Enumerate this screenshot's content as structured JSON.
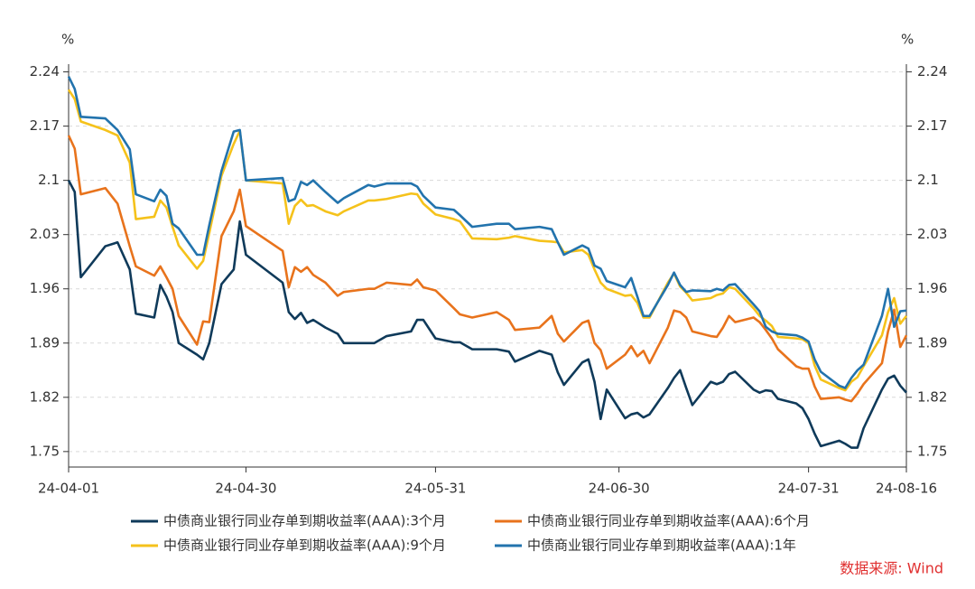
{
  "chart_data": {
    "type": "line",
    "y_label": "%",
    "y2_label": "%",
    "source": "数据来源: Wind",
    "x": [
      "24-04-01",
      "24-04-02",
      "24-04-03",
      "24-04-07",
      "24-04-09",
      "24-04-11",
      "24-04-12",
      "24-04-15",
      "24-04-16",
      "24-04-17",
      "24-04-18",
      "24-04-19",
      "24-04-22",
      "24-04-23",
      "24-04-24",
      "24-04-26",
      "24-04-28",
      "24-04-29",
      "24-04-30",
      "24-05-06",
      "24-05-07",
      "24-05-08",
      "24-05-09",
      "24-05-10",
      "24-05-11",
      "24-05-13",
      "24-05-15",
      "24-05-16",
      "24-05-20",
      "24-05-21",
      "24-05-23",
      "24-05-27",
      "24-05-28",
      "24-05-29",
      "24-05-31",
      "24-06-03",
      "24-06-04",
      "24-06-06",
      "24-06-10",
      "24-06-12",
      "24-06-13",
      "24-06-17",
      "24-06-19",
      "24-06-20",
      "24-06-21",
      "24-06-24",
      "24-06-25",
      "24-06-26",
      "24-06-27",
      "24-06-28",
      "24-07-01",
      "24-07-02",
      "24-07-03",
      "24-07-04",
      "24-07-05",
      "24-07-08",
      "24-07-09",
      "24-07-10",
      "24-07-11",
      "24-07-12",
      "24-07-15",
      "24-07-16",
      "24-07-17",
      "24-07-18",
      "24-07-19",
      "24-07-22",
      "24-07-23",
      "24-07-24",
      "24-07-25",
      "24-07-26",
      "24-07-29",
      "24-07-30",
      "24-07-31",
      "24-08-01",
      "24-08-02",
      "24-08-05",
      "24-08-06",
      "24-08-07",
      "24-08-08",
      "24-08-09",
      "24-08-12",
      "24-08-13",
      "24-08-14",
      "24-08-15",
      "24-08-16"
    ],
    "series": [
      {
        "name": "中债商业银行同业存单到期收益率(AAA):3个月",
        "color": "#0f3a5a",
        "values": [
          2.1,
          2.085,
          1.975,
          2.015,
          2.02,
          1.985,
          1.928,
          1.923,
          1.965,
          1.95,
          1.93,
          1.89,
          1.875,
          1.869,
          1.89,
          1.966,
          1.985,
          2.047,
          2.004,
          1.968,
          1.93,
          1.921,
          1.929,
          1.916,
          1.92,
          1.91,
          1.902,
          1.89,
          1.89,
          1.89,
          1.899,
          1.905,
          1.92,
          1.92,
          1.896,
          1.891,
          1.891,
          1.882,
          1.882,
          1.879,
          1.866,
          1.88,
          1.875,
          1.852,
          1.836,
          1.865,
          1.869,
          1.84,
          1.792,
          1.83,
          1.793,
          1.798,
          1.8,
          1.794,
          1.798,
          1.832,
          1.845,
          1.855,
          1.832,
          1.81,
          1.84,
          1.837,
          1.84,
          1.85,
          1.853,
          1.83,
          1.826,
          1.829,
          1.828,
          1.818,
          1.812,
          1.806,
          1.792,
          1.773,
          1.757,
          1.764,
          1.76,
          1.755,
          1.755,
          1.78,
          1.83,
          1.844,
          1.848,
          1.835,
          1.826
        ]
      },
      {
        "name": "中债商业银行同业存单到期收益率(AAA):6个月",
        "color": "#e8731c",
        "values": [
          2.158,
          2.141,
          2.082,
          2.09,
          2.07,
          2.015,
          1.989,
          1.977,
          1.989,
          1.975,
          1.96,
          1.925,
          1.888,
          1.918,
          1.917,
          2.028,
          2.06,
          2.088,
          2.041,
          2.009,
          1.962,
          1.988,
          1.982,
          1.988,
          1.978,
          1.968,
          1.951,
          1.956,
          1.96,
          1.96,
          1.968,
          1.965,
          1.972,
          1.962,
          1.958,
          1.935,
          1.927,
          1.923,
          1.93,
          1.92,
          1.907,
          1.91,
          1.925,
          1.902,
          1.892,
          1.916,
          1.919,
          1.89,
          1.881,
          1.857,
          1.875,
          1.886,
          1.873,
          1.88,
          1.864,
          1.91,
          1.932,
          1.93,
          1.923,
          1.905,
          1.899,
          1.898,
          1.91,
          1.925,
          1.917,
          1.923,
          1.917,
          1.907,
          1.896,
          1.882,
          1.86,
          1.857,
          1.857,
          1.834,
          1.818,
          1.82,
          1.817,
          1.815,
          1.825,
          1.837,
          1.864,
          1.905,
          1.933,
          1.885,
          1.9
        ]
      },
      {
        "name": "中债商业银行同业存单到期收益率(AAA):9个月",
        "color": "#f5c21b",
        "values": [
          2.217,
          2.205,
          2.176,
          2.165,
          2.158,
          2.123,
          2.05,
          2.053,
          2.074,
          2.065,
          2.04,
          2.016,
          1.986,
          1.996,
          2.032,
          2.106,
          2.147,
          2.164,
          2.1,
          2.096,
          2.044,
          2.067,
          2.075,
          2.067,
          2.068,
          2.06,
          2.055,
          2.06,
          2.074,
          2.074,
          2.076,
          2.083,
          2.082,
          2.07,
          2.056,
          2.05,
          2.047,
          2.025,
          2.024,
          2.026,
          2.028,
          2.022,
          2.021,
          2.02,
          2.007,
          2.01,
          2.004,
          1.985,
          1.968,
          1.96,
          1.951,
          1.952,
          1.942,
          1.923,
          1.923,
          1.968,
          1.98,
          1.963,
          1.955,
          1.945,
          1.948,
          1.952,
          1.954,
          1.962,
          1.96,
          1.935,
          1.925,
          1.919,
          1.912,
          1.898,
          1.896,
          1.895,
          1.89,
          1.861,
          1.843,
          1.832,
          1.829,
          1.84,
          1.846,
          1.86,
          1.9,
          1.93,
          1.948,
          1.915,
          1.925
        ]
      },
      {
        "name": "中债商业银行同业存单到期收益率(AAA):1年",
        "color": "#2273ad",
        "values": [
          2.234,
          2.218,
          2.182,
          2.18,
          2.165,
          2.14,
          2.082,
          2.073,
          2.088,
          2.08,
          2.044,
          2.038,
          2.004,
          2.004,
          2.042,
          2.112,
          2.163,
          2.165,
          2.1,
          2.103,
          2.073,
          2.076,
          2.098,
          2.094,
          2.1,
          2.085,
          2.071,
          2.077,
          2.094,
          2.092,
          2.096,
          2.096,
          2.092,
          2.08,
          2.065,
          2.062,
          2.055,
          2.04,
          2.044,
          2.044,
          2.037,
          2.04,
          2.037,
          2.02,
          2.004,
          2.016,
          2.012,
          1.99,
          1.986,
          1.97,
          1.962,
          1.974,
          1.95,
          1.925,
          1.925,
          1.965,
          1.981,
          1.965,
          1.956,
          1.958,
          1.957,
          1.96,
          1.958,
          1.965,
          1.966,
          1.94,
          1.931,
          1.911,
          1.905,
          1.902,
          1.9,
          1.897,
          1.892,
          1.869,
          1.853,
          1.835,
          1.832,
          1.845,
          1.855,
          1.862,
          1.925,
          1.96,
          1.911,
          1.931,
          1.932
        ]
      }
    ],
    "xlim": [
      "24-04-01",
      "24-08-16"
    ],
    "xticks": [
      "24-04-01",
      "24-04-30",
      "24-05-31",
      "24-06-30",
      "24-07-31",
      "24-08-16"
    ],
    "ylim": [
      1.73,
      2.25
    ],
    "yticks": [
      1.75,
      1.82,
      1.89,
      1.96,
      2.03,
      2.1,
      2.17,
      2.24
    ],
    "y2lim": [
      1.73,
      2.25
    ],
    "y2ticks": [
      1.75,
      1.82,
      1.89,
      1.96,
      2.03,
      2.1,
      2.17,
      2.24
    ],
    "grid": true,
    "legend": "bottom"
  }
}
